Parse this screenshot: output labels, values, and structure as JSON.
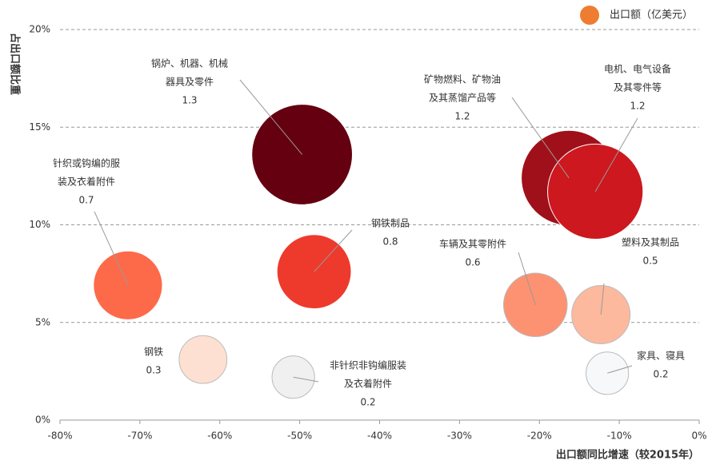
{
  "chart_data": {
    "type": "bubble",
    "y_label": "占出口额比重",
    "x_label": "出口额同比增速（较2015年）",
    "legend": {
      "name": "出口额（亿美元）",
      "color": "#ee7d31",
      "corner": "top-right"
    },
    "xlim": [
      -80,
      0
    ],
    "xticks": [
      {
        "value": -80,
        "label": "-80%"
      },
      {
        "value": -70,
        "label": "-70%"
      },
      {
        "value": -60,
        "label": "-60%"
      },
      {
        "value": -50,
        "label": "-50%"
      },
      {
        "value": -40,
        "label": "-40%"
      },
      {
        "value": -30,
        "label": "-30%"
      },
      {
        "value": -20,
        "label": "-20%"
      },
      {
        "value": -10,
        "label": "-10%"
      },
      {
        "value": 0,
        "label": "0%"
      }
    ],
    "ylim": [
      0,
      20
    ],
    "yticks": [
      {
        "value": 0,
        "label": "0%"
      },
      {
        "value": 5,
        "label": "5%"
      },
      {
        "value": 10,
        "label": "10%"
      },
      {
        "value": 15,
        "label": "15%"
      },
      {
        "value": 20,
        "label": "20%"
      }
    ],
    "grid": true,
    "points": [
      {
        "label": [
          "锅炉、机器、机械",
          "器具及零件"
        ],
        "x": -49.7,
        "y": 13.6,
        "size": 1.3,
        "color": "#650010"
      },
      {
        "label": [
          "矿物燃料、矿物油",
          "及其蒸馏产品等"
        ],
        "x": -16.3,
        "y": 12.4,
        "size": 1.2,
        "color": "#a0101a"
      },
      {
        "label": [
          "电机、电气设备",
          "及其零件等"
        ],
        "x": -13.0,
        "y": 11.7,
        "size": 1.2,
        "color": "#cc181e"
      },
      {
        "label": [
          "针织或钩编的服",
          "装及衣着附件"
        ],
        "x": -71.5,
        "y": 6.9,
        "size": 0.7,
        "color": "#fd6a4a"
      },
      {
        "label": [
          "钢铁制品"
        ],
        "x": -48.2,
        "y": 7.6,
        "size": 0.8,
        "color": "#ee3a2c"
      },
      {
        "label": [
          "车辆及其零附件"
        ],
        "x": -20.5,
        "y": 5.9,
        "size": 0.6,
        "color": "#fc9272"
      },
      {
        "label": [
          "塑料及其制品"
        ],
        "x": -12.3,
        "y": 5.4,
        "size": 0.5,
        "color": "#fcb99e"
      },
      {
        "label": [
          "钢铁"
        ],
        "x": -62.1,
        "y": 3.1,
        "size": 0.3,
        "color": "#fee0d2"
      },
      {
        "label": [
          "非针织非钩编服装",
          "及衣着附件"
        ],
        "x": -50.8,
        "y": 2.2,
        "size": 0.2,
        "color": "#f0f0f0"
      },
      {
        "label": [
          "家具、寝具"
        ],
        "x": -11.5,
        "y": 2.4,
        "size": 0.2,
        "color": "#f6f8fa"
      }
    ]
  }
}
